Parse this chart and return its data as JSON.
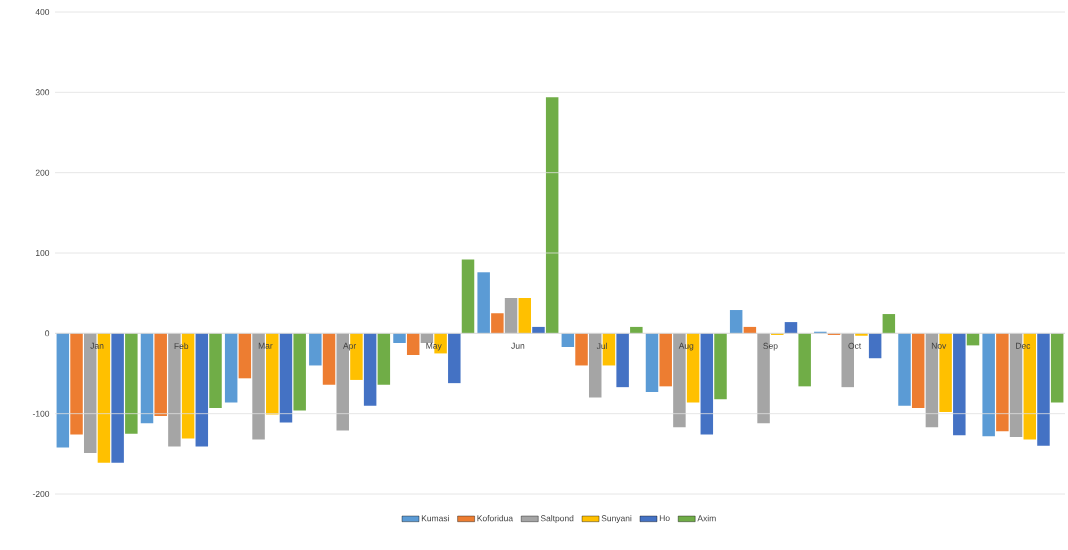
{
  "chart_data": {
    "type": "bar",
    "categories": [
      "Jan",
      "Feb",
      "Mar",
      "Apr",
      "May",
      "Jun",
      "Jul",
      "Aug",
      "Sep",
      "Oct",
      "Nov",
      "Dec"
    ],
    "series": [
      {
        "name": "Kumasi",
        "color": "#5b9bd5",
        "values": [
          -142,
          -112,
          -86,
          -40,
          -12,
          76,
          -17,
          -73,
          29,
          2,
          -90,
          -128
        ]
      },
      {
        "name": "Koforidua",
        "color": "#ed7d31",
        "values": [
          -126,
          -103,
          -56,
          -64,
          -27,
          25,
          -40,
          -66,
          8,
          -2,
          -93,
          -122
        ]
      },
      {
        "name": "Saltpond",
        "color": "#a5a5a5",
        "values": [
          -149,
          -141,
          -132,
          -121,
          -12,
          44,
          -80,
          -117,
          -112,
          -67,
          -117,
          -129
        ]
      },
      {
        "name": "Sunyani",
        "color": "#ffc000",
        "values": [
          -161,
          -131,
          -101,
          -58,
          -25,
          44,
          -40,
          -86,
          -2,
          -3,
          -98,
          -132
        ]
      },
      {
        "name": "Ho",
        "color": "#4472c4",
        "values": [
          -161,
          -141,
          -111,
          -90,
          -62,
          8,
          -67,
          -126,
          14,
          -31,
          -127,
          -140
        ]
      },
      {
        "name": "Axim",
        "color": "#70ad47",
        "values": [
          -125,
          -93,
          -96,
          -64,
          92,
          294,
          8,
          -82,
          -66,
          24,
          -15,
          -86
        ]
      }
    ],
    "ylim": [
      -200,
      400
    ],
    "yticks": [
      -200,
      -100,
      0,
      100,
      200,
      300,
      400
    ],
    "grid": "y",
    "legend": "bottom"
  }
}
